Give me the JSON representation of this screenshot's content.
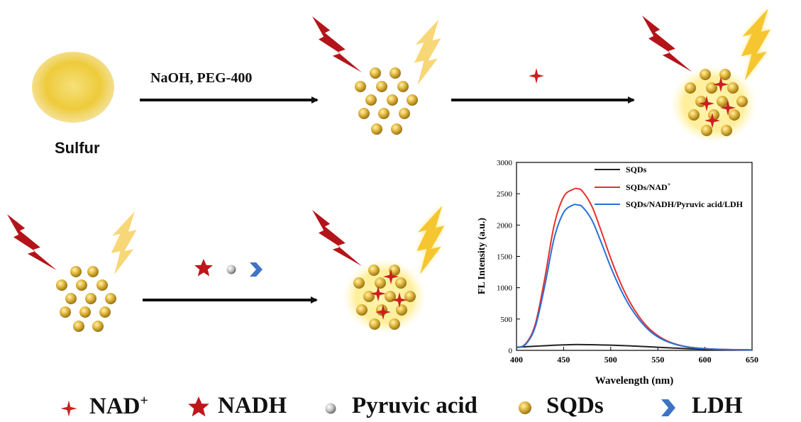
{
  "scheme": {
    "sulfur_label": "Sulfur",
    "reagent_label": "NaOH, PEG-400"
  },
  "legend": {
    "nad_plus": "NAD",
    "nad_plus_sup": "+",
    "nadh": "NADH",
    "pyruvic_acid": "Pyruvic acid",
    "sqds": "SQDs",
    "ldh": "LDH"
  },
  "colors": {
    "sulfur": "#eecb3a",
    "sqd": "#d6ac33",
    "nad_marker": "#cc1f1f",
    "nadh_star": "#c0151b",
    "ldh": "#3f73c4",
    "lightning_red": "#b3141a",
    "lightning_yellow": "#f8d778",
    "glow": "#fff1a0",
    "series_sqds": "#222222",
    "series_nad": "#e8302c",
    "series_ldh": "#2a6fd8"
  },
  "chart_data": {
    "type": "line",
    "xlabel": "Wavelength (nm)",
    "ylabel": "FL Intensity (a.u.)",
    "xlim": [
      400,
      650
    ],
    "ylim": [
      0,
      3000
    ],
    "xticks": [
      400,
      450,
      500,
      550,
      600,
      650
    ],
    "yticks": [
      0,
      500,
      1000,
      1500,
      2000,
      2500,
      3000
    ],
    "legend_position": "top-right",
    "grid": false,
    "x": [
      400,
      410,
      420,
      430,
      440,
      450,
      460,
      465,
      470,
      480,
      490,
      500,
      510,
      520,
      530,
      540,
      550,
      560,
      570,
      580,
      590,
      600,
      610,
      620,
      630,
      640,
      650
    ],
    "series": [
      {
        "name": "SQDs",
        "color_key": "series_sqds",
        "values": [
          50,
          58,
          66,
          74,
          82,
          88,
          92,
          93,
          92,
          90,
          87,
          83,
          78,
          72,
          65,
          58,
          50,
          42,
          35,
          28,
          22,
          17,
          13,
          10,
          8,
          6,
          5
        ]
      },
      {
        "name": "SQDs/NAD",
        "name_sup": "+",
        "color_key": "series_nad",
        "values": [
          40,
          110,
          420,
          1150,
          2000,
          2450,
          2570,
          2580,
          2540,
          2300,
          1900,
          1470,
          1090,
          780,
          540,
          360,
          235,
          150,
          95,
          60,
          40,
          28,
          20,
          15,
          12,
          10,
          8
        ]
      },
      {
        "name": "SQDs/NADH/Pyruvic acid/LDH",
        "color_key": "series_ldh",
        "values": [
          40,
          100,
          380,
          1030,
          1790,
          2200,
          2320,
          2320,
          2290,
          2080,
          1720,
          1330,
          990,
          710,
          495,
          330,
          215,
          140,
          90,
          58,
          38,
          26,
          19,
          14,
          11,
          9,
          7
        ]
      }
    ]
  }
}
